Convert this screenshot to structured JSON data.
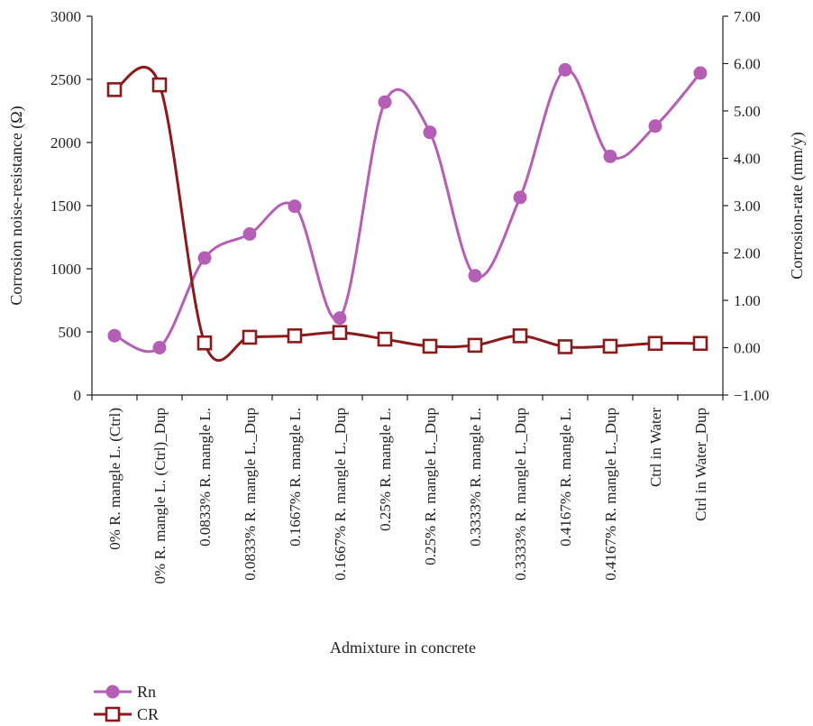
{
  "chart_data": {
    "type": "line",
    "title": "",
    "xlabel": "Admixture in concrete",
    "categories": [
      "0% R. mangle L. (Ctrl)",
      "0% R. mangle L. (Ctrl)_Dup",
      "0.0833% R. mangle L.",
      "0.0833% R. mangle L._Dup",
      "0.1667% R. mangle L.",
      "0.1667% R. mangle L._Dup",
      "0.25% R. mangle L.",
      "0.25% R. mangle L._Dup",
      "0.3333% R. mangle L.",
      "0.3333% R. mangle L._Dup",
      "0.4167% R. mangle L.",
      "0.4167% R. mangle L._Dup",
      "Ctrl in Water",
      "Ctrl in Water_Dup"
    ],
    "y_left": {
      "label": "Corrosion noise-resistance (Ω)",
      "ylim": [
        0,
        3000
      ],
      "ticks": [
        "0",
        "500",
        "1000",
        "1500",
        "2000",
        "2500",
        "3000"
      ]
    },
    "y_right": {
      "label": "Corrosion-rate (mm/y)",
      "ylim": [
        -1.0,
        7.0
      ],
      "ticks": [
        "−1.00",
        "0.00",
        "1.00",
        "2.00",
        "3.00",
        "4.00",
        "5.00",
        "6.00",
        "7.00"
      ]
    },
    "series": [
      {
        "name": "Rn",
        "axis": "left",
        "color": "#b55eb5",
        "marker": "circle",
        "values": [
          470,
          375,
          1085,
          1275,
          1495,
          610,
          2320,
          2080,
          945,
          1565,
          2575,
          1890,
          2130,
          2550
        ]
      },
      {
        "name": "CR",
        "axis": "right",
        "color": "#8b1a1a",
        "marker": "square",
        "values": [
          5.45,
          5.55,
          0.1,
          0.22,
          0.25,
          0.32,
          0.18,
          0.03,
          0.05,
          0.25,
          0.02,
          0.03,
          0.09,
          0.09
        ]
      }
    ],
    "grid": false,
    "legend": "bottom-left"
  }
}
